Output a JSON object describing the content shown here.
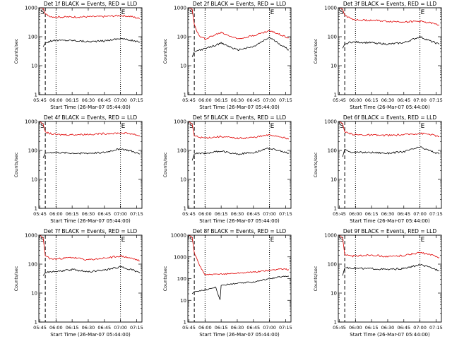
{
  "colors": {
    "events": "#000000",
    "lld": "#e00000",
    "axes": "#000000",
    "background": "#ffffff"
  },
  "panel_titles": [
    "Det 1f BLACK = Events, RED = LLD",
    "Det 2f BLACK = Events, RED = LLD",
    "Det 3f BLACK = Events, RED = LLD",
    "Det 4f BLACK = Events, RED = LLD",
    "Det 5f BLACK = Events, RED = LLD",
    "Det 6f BLACK = Events, RED = LLD",
    "Det 7f BLACK = Events, RED = LLD",
    "Det 8f BLACK = Events, RED = LLD",
    "Det 9f BLACK = Events, RED = LLD"
  ],
  "ylabel": "Counts/sec",
  "xlabel": "Start Time (26-Mar-07 05:44:00)",
  "chart_data": [
    {
      "type": "line",
      "title": "Det 1f BLACK = Events, RED = LLD",
      "xlabel": "Start Time (26-Mar-07 05:44:00)",
      "ylabel": "Counts/sec",
      "y_scale": "log",
      "ylim": [
        1,
        1000
      ],
      "xlim": [
        "05:44",
        "07:20"
      ],
      "x_ticks": [
        "05:45",
        "06:00",
        "06:15",
        "06:30",
        "06:45",
        "07:00",
        "07:15"
      ],
      "y_ticks": [
        "1",
        "10",
        "100",
        "1000"
      ],
      "markers": [
        {
          "label": "S",
          "time": "05:50",
          "style": "dashed"
        },
        {
          "label": "",
          "time": "06:00",
          "style": "dotted"
        },
        {
          "label": "E",
          "time": "07:00",
          "style": "dotted"
        }
      ],
      "series": [
        {
          "name": "Events",
          "color": "#000000",
          "x": [
            "05:48",
            "05:50",
            "05:55",
            "06:00",
            "06:15",
            "06:30",
            "06:45",
            "07:00",
            "07:10",
            "07:18"
          ],
          "values": [
            45,
            60,
            72,
            75,
            75,
            68,
            72,
            88,
            75,
            65
          ]
        },
        {
          "name": "LLD",
          "color": "#e00000",
          "x": [
            "05:45",
            "05:48",
            "05:50",
            "05:55",
            "06:00",
            "06:15",
            "06:30",
            "06:45",
            "07:00",
            "07:10",
            "07:18"
          ],
          "values": [
            1000,
            950,
            600,
            500,
            480,
            480,
            490,
            500,
            540,
            500,
            420
          ]
        }
      ]
    },
    {
      "type": "line",
      "title": "Det 2f BLACK = Events, RED = LLD",
      "xlabel": "Start Time (26-Mar-07 05:44:00)",
      "ylabel": "Counts/sec",
      "y_scale": "log",
      "ylim": [
        1,
        1000
      ],
      "xlim": [
        "05:44",
        "07:20"
      ],
      "x_ticks": [
        "05:45",
        "06:00",
        "06:15",
        "06:30",
        "06:45",
        "07:00",
        "07:15"
      ],
      "y_ticks": [
        "1",
        "10",
        "100",
        "1000"
      ],
      "markers": [
        {
          "label": "S",
          "time": "05:50",
          "style": "dashed"
        },
        {
          "label": "",
          "time": "06:00",
          "style": "dotted"
        },
        {
          "label": "E",
          "time": "07:00",
          "style": "dotted"
        }
      ],
      "series": [
        {
          "name": "Events",
          "color": "#000000",
          "x": [
            "05:48",
            "05:50",
            "05:55",
            "06:00",
            "06:15",
            "06:30",
            "06:45",
            "07:00",
            "07:10",
            "07:18"
          ],
          "values": [
            20,
            30,
            35,
            38,
            60,
            35,
            45,
            95,
            55,
            35
          ]
        },
        {
          "name": "LLD",
          "color": "#e00000",
          "x": [
            "05:45",
            "05:48",
            "05:50",
            "05:55",
            "06:00",
            "06:15",
            "06:30",
            "06:45",
            "07:00",
            "07:10",
            "07:18"
          ],
          "values": [
            1000,
            900,
            250,
            100,
            85,
            140,
            85,
            110,
            160,
            120,
            90
          ]
        }
      ]
    },
    {
      "type": "line",
      "title": "Det 3f BLACK = Events, RED = LLD",
      "xlabel": "Start Time (26-Mar-07 05:44:00)",
      "ylabel": "Counts/sec",
      "y_scale": "log",
      "ylim": [
        1,
        1000
      ],
      "xlim": [
        "05:44",
        "07:20"
      ],
      "x_ticks": [
        "05:45",
        "06:00",
        "06:15",
        "06:30",
        "06:45",
        "07:00",
        "07:15"
      ],
      "y_ticks": [
        "1",
        "10",
        "100",
        "1000"
      ],
      "markers": [
        {
          "label": "S",
          "time": "05:50",
          "style": "dashed"
        },
        {
          "label": "",
          "time": "06:00",
          "style": "dotted"
        },
        {
          "label": "E",
          "time": "07:00",
          "style": "dotted"
        }
      ],
      "series": [
        {
          "name": "Events",
          "color": "#000000",
          "x": [
            "05:48",
            "05:50",
            "05:55",
            "06:00",
            "06:15",
            "06:30",
            "06:45",
            "07:00",
            "07:10",
            "07:18"
          ],
          "values": [
            40,
            55,
            65,
            65,
            62,
            55,
            62,
            100,
            70,
            55
          ]
        },
        {
          "name": "LLD",
          "color": "#e00000",
          "x": [
            "05:45",
            "05:48",
            "05:50",
            "05:55",
            "06:00",
            "06:15",
            "06:30",
            "06:45",
            "07:00",
            "07:10",
            "07:18"
          ],
          "values": [
            1000,
            900,
            550,
            450,
            380,
            370,
            340,
            330,
            340,
            300,
            250
          ]
        }
      ]
    },
    {
      "type": "line",
      "title": "Det 4f BLACK = Events, RED = LLD",
      "xlabel": "Start Time (26-Mar-07 05:44:00)",
      "ylabel": "Counts/sec",
      "y_scale": "log",
      "ylim": [
        1,
        1000
      ],
      "xlim": [
        "05:44",
        "07:20"
      ],
      "x_ticks": [
        "05:45",
        "06:00",
        "06:15",
        "06:30",
        "06:45",
        "07:00",
        "07:15"
      ],
      "y_ticks": [
        "1",
        "10",
        "100",
        "1000"
      ],
      "markers": [
        {
          "label": "S",
          "time": "05:50",
          "style": "dashed"
        },
        {
          "label": "",
          "time": "06:00",
          "style": "dotted"
        },
        {
          "label": "E",
          "time": "07:00",
          "style": "dotted"
        }
      ],
      "series": [
        {
          "name": "Events",
          "color": "#000000",
          "x": [
            "05:48",
            "05:50",
            "05:55",
            "06:00",
            "06:15",
            "06:30",
            "06:45",
            "07:00",
            "07:10",
            "07:18"
          ],
          "values": [
            55,
            80,
            85,
            85,
            80,
            80,
            85,
            115,
            95,
            75
          ]
        },
        {
          "name": "LLD",
          "color": "#e00000",
          "x": [
            "05:45",
            "05:48",
            "05:50",
            "05:55",
            "06:00",
            "06:15",
            "06:30",
            "06:45",
            "07:00",
            "07:10",
            "07:18"
          ],
          "values": [
            1000,
            800,
            420,
            380,
            350,
            350,
            360,
            380,
            400,
            380,
            320
          ]
        }
      ]
    },
    {
      "type": "line",
      "title": "Det 5f BLACK = Events, RED = LLD",
      "xlabel": "Start Time (26-Mar-07 05:44:00)",
      "ylabel": "Counts/sec",
      "y_scale": "log",
      "ylim": [
        1,
        1000
      ],
      "xlim": [
        "05:44",
        "07:20"
      ],
      "x_ticks": [
        "05:45",
        "06:00",
        "06:15",
        "06:30",
        "06:45",
        "07:00",
        "07:15"
      ],
      "y_ticks": [
        "1",
        "10",
        "100",
        "1000"
      ],
      "markers": [
        {
          "label": "S",
          "time": "05:50",
          "style": "dashed"
        },
        {
          "label": "",
          "time": "06:00",
          "style": "dotted"
        },
        {
          "label": "E",
          "time": "07:00",
          "style": "dotted"
        }
      ],
      "series": [
        {
          "name": "Events",
          "color": "#000000",
          "x": [
            "05:48",
            "05:50",
            "05:55",
            "06:00",
            "06:15",
            "06:30",
            "06:45",
            "07:00",
            "07:10",
            "07:18"
          ],
          "values": [
            45,
            75,
            80,
            80,
            95,
            75,
            85,
            120,
            95,
            80
          ]
        },
        {
          "name": "LLD",
          "color": "#e00000",
          "x": [
            "05:45",
            "05:48",
            "05:50",
            "05:55",
            "06:00",
            "06:15",
            "06:30",
            "06:45",
            "07:00",
            "07:10",
            "07:18"
          ],
          "values": [
            1000,
            800,
            320,
            280,
            270,
            300,
            260,
            280,
            340,
            300,
            250
          ]
        }
      ]
    },
    {
      "type": "line",
      "title": "Det 6f BLACK = Events, RED = LLD",
      "xlabel": "Start Time (26-Mar-07 05:44:00)",
      "ylabel": "Counts/sec",
      "y_scale": "log",
      "ylim": [
        1,
        1000
      ],
      "xlim": [
        "05:44",
        "07:20"
      ],
      "x_ticks": [
        "05:45",
        "06:00",
        "06:15",
        "06:30",
        "06:45",
        "07:00",
        "07:15"
      ],
      "y_ticks": [
        "1",
        "10",
        "100",
        "1000"
      ],
      "markers": [
        {
          "label": "S",
          "time": "05:50",
          "style": "dashed"
        },
        {
          "label": "",
          "time": "06:00",
          "style": "dotted"
        },
        {
          "label": "E",
          "time": "07:00",
          "style": "dotted"
        }
      ],
      "series": [
        {
          "name": "Events",
          "color": "#000000",
          "x": [
            "05:48",
            "05:50",
            "05:55",
            "06:00",
            "06:15",
            "06:30",
            "06:45",
            "07:00",
            "07:10",
            "07:18"
          ],
          "values": [
            60,
            110,
            90,
            85,
            85,
            80,
            90,
            130,
            95,
            75
          ]
        },
        {
          "name": "LLD",
          "color": "#e00000",
          "x": [
            "05:45",
            "05:48",
            "05:50",
            "05:55",
            "06:00",
            "06:15",
            "06:30",
            "06:45",
            "07:00",
            "07:10",
            "07:18"
          ],
          "values": [
            1000,
            850,
            420,
            380,
            350,
            340,
            330,
            350,
            390,
            360,
            300
          ]
        }
      ]
    },
    {
      "type": "line",
      "title": "Det 7f BLACK = Events, RED = LLD",
      "xlabel": "Start Time (26-Mar-07 05:44:00)",
      "ylabel": "Counts/sec",
      "y_scale": "log",
      "ylim": [
        1,
        1000
      ],
      "xlim": [
        "05:44",
        "07:20"
      ],
      "x_ticks": [
        "05:45",
        "06:00",
        "06:15",
        "06:30",
        "06:45",
        "07:00",
        "07:15"
      ],
      "y_ticks": [
        "1",
        "10",
        "100",
        "1000"
      ],
      "markers": [
        {
          "label": "S",
          "time": "05:50",
          "style": "dashed"
        },
        {
          "label": "",
          "time": "06:00",
          "style": "dotted"
        },
        {
          "label": "E",
          "time": "07:00",
          "style": "dotted"
        }
      ],
      "series": [
        {
          "name": "Events",
          "color": "#000000",
          "x": [
            "05:48",
            "05:50",
            "05:55",
            "06:00",
            "06:15",
            "06:30",
            "06:45",
            "07:00",
            "07:10",
            "07:18"
          ],
          "values": [
            40,
            50,
            55,
            55,
            65,
            55,
            62,
            80,
            65,
            50
          ]
        },
        {
          "name": "LLD",
          "color": "#e00000",
          "x": [
            "05:45",
            "05:48",
            "05:50",
            "05:55",
            "06:00",
            "06:15",
            "06:30",
            "06:45",
            "07:00",
            "07:10",
            "07:18"
          ],
          "values": [
            1000,
            800,
            200,
            150,
            150,
            170,
            140,
            160,
            190,
            160,
            130
          ]
        }
      ]
    },
    {
      "type": "line",
      "title": "Det 8f BLACK = Events, RED = LLD",
      "xlabel": "Start Time (26-Mar-07 05:44:00)",
      "ylabel": "Counts/sec",
      "y_scale": "log",
      "ylim": [
        1,
        10000
      ],
      "xlim": [
        "05:44",
        "07:20"
      ],
      "x_ticks": [
        "05:45",
        "06:00",
        "06:15",
        "06:30",
        "06:45",
        "07:00",
        "07:15"
      ],
      "y_ticks": [
        "1",
        "10",
        "100",
        "1000",
        "10000"
      ],
      "markers": [
        {
          "label": "S",
          "time": "05:50",
          "style": "dashed"
        },
        {
          "label": "",
          "time": "06:00",
          "style": "dotted"
        },
        {
          "label": "E",
          "time": "07:00",
          "style": "dotted"
        }
      ],
      "series": [
        {
          "name": "Events",
          "color": "#000000",
          "x": [
            "05:48",
            "05:50",
            "05:55",
            "06:00",
            "06:10",
            "06:14",
            "06:15",
            "06:30",
            "06:45",
            "07:00",
            "07:10",
            "07:18"
          ],
          "values": [
            20,
            25,
            28,
            30,
            40,
            10,
            50,
            60,
            70,
            100,
            120,
            130
          ]
        },
        {
          "name": "LLD",
          "color": "#e00000",
          "x": [
            "05:45",
            "05:48",
            "05:50",
            "05:55",
            "06:00",
            "06:15",
            "06:30",
            "06:45",
            "07:00",
            "07:10",
            "07:18"
          ],
          "values": [
            10000,
            8000,
            1500,
            400,
            150,
            160,
            180,
            200,
            240,
            280,
            260
          ]
        }
      ]
    },
    {
      "type": "line",
      "title": "Det 9f BLACK = Events, RED = LLD",
      "xlabel": "Start Time (26-Mar-07 05:44:00)",
      "ylabel": "Counts/sec",
      "y_scale": "log",
      "ylim": [
        1,
        1000
      ],
      "xlim": [
        "05:44",
        "07:20"
      ],
      "x_ticks": [
        "05:45",
        "06:00",
        "06:15",
        "06:30",
        "06:45",
        "07:00",
        "07:15"
      ],
      "y_ticks": [
        "1",
        "10",
        "100",
        "1000"
      ],
      "markers": [
        {
          "label": "S",
          "time": "05:50",
          "style": "dashed"
        },
        {
          "label": "",
          "time": "06:00",
          "style": "dotted"
        },
        {
          "label": "E",
          "time": "07:00",
          "style": "dotted"
        }
      ],
      "series": [
        {
          "name": "Events",
          "color": "#000000",
          "x": [
            "05:48",
            "05:50",
            "05:55",
            "06:00",
            "06:15",
            "06:30",
            "06:45",
            "07:00",
            "07:10",
            "07:18"
          ],
          "values": [
            40,
            75,
            75,
            72,
            70,
            65,
            70,
            95,
            75,
            60
          ]
        },
        {
          "name": "LLD",
          "color": "#e00000",
          "x": [
            "05:45",
            "05:48",
            "05:50",
            "05:55",
            "06:00",
            "06:15",
            "06:30",
            "06:45",
            "07:00",
            "07:10",
            "07:18"
          ],
          "values": [
            1000,
            800,
            220,
            190,
            190,
            210,
            180,
            200,
            250,
            210,
            170
          ]
        }
      ]
    }
  ]
}
